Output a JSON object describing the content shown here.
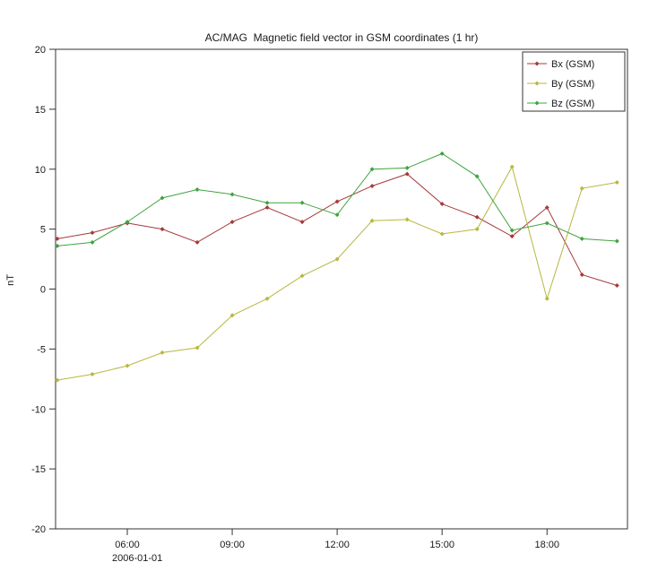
{
  "window": {
    "background_color": "#ffffff",
    "frame_color": "#333333",
    "text_color": "#1a1a1a"
  },
  "chart_data": {
    "type": "line",
    "title": "AC/MAG  Magnetic field vector in GSM coordinates (1 hr)",
    "ylabel": "nT",
    "x_date_label": "2006-01-01",
    "grid": false,
    "legend_position": "top-right",
    "ylim": [
      -20,
      20
    ],
    "xlim_hours": [
      3.95,
      20.3
    ],
    "yticks": [
      20,
      15,
      10,
      5,
      0,
      -5,
      -10,
      -15,
      -20
    ],
    "xticks": [
      {
        "hour": 6,
        "label": "06:00"
      },
      {
        "hour": 9,
        "label": "09:00"
      },
      {
        "hour": 12,
        "label": "12:00"
      },
      {
        "hour": 15,
        "label": "15:00"
      },
      {
        "hour": 18,
        "label": "18:00"
      }
    ],
    "x_hours": [
      4,
      5,
      6,
      7,
      8,
      9,
      10,
      11,
      12,
      13,
      14,
      15,
      16,
      17,
      18,
      19,
      20
    ],
    "series": [
      {
        "name": "Bx (GSM)",
        "color": "#a53a3a",
        "values": [
          4.2,
          4.7,
          5.5,
          5.0,
          3.9,
          5.6,
          6.8,
          5.6,
          7.3,
          8.6,
          9.6,
          7.1,
          6.0,
          4.4,
          6.8,
          1.2,
          0.3
        ]
      },
      {
        "name": "By (GSM)",
        "color": "#b7b73f",
        "values": [
          -7.6,
          -7.1,
          -6.4,
          -5.3,
          -4.9,
          -2.2,
          -0.8,
          1.1,
          2.5,
          5.7,
          5.8,
          4.6,
          5.0,
          10.2,
          -0.8,
          8.4,
          8.9
        ]
      },
      {
        "name": "Bz (GSM)",
        "color": "#3fa43f",
        "values": [
          3.6,
          3.9,
          5.6,
          7.6,
          8.3,
          7.9,
          7.2,
          7.2,
          6.2,
          10.0,
          10.1,
          11.3,
          9.4,
          4.9,
          5.5,
          4.2,
          4.0
        ]
      }
    ]
  }
}
